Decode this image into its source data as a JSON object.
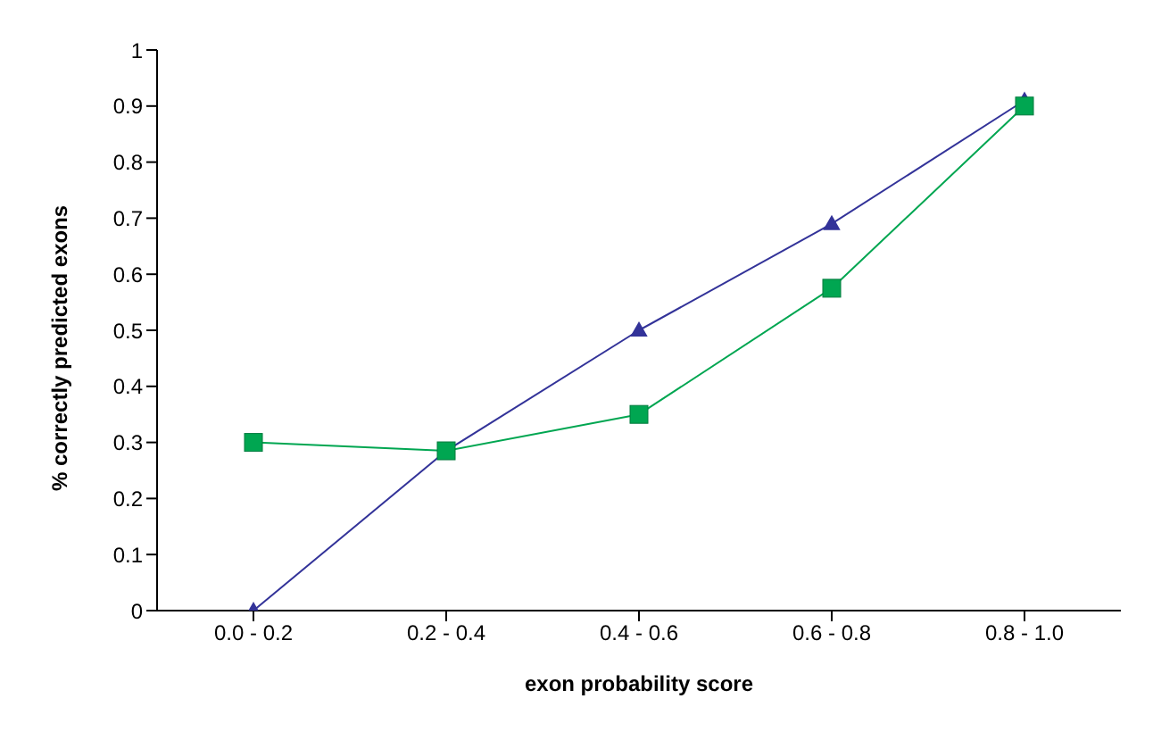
{
  "chart_data": {
    "type": "line",
    "xlabel": "exon probability score",
    "ylabel": "% correctly predicted exons",
    "categories": [
      "0.0 - 0.2",
      "0.2 - 0.4",
      "0.4 - 0.6",
      "0.6 - 0.8",
      "0.8 - 1.0"
    ],
    "series": [
      {
        "color": "#333399",
        "marker": "triangle",
        "values": [
          0,
          0.285,
          0.5,
          0.69,
          0.91
        ]
      },
      {
        "color": "#00a651",
        "marker": "square",
        "values": [
          0.3,
          0.285,
          0.35,
          0.575,
          0.9
        ]
      }
    ],
    "ylim": [
      0,
      1
    ],
    "yticks": [
      0,
      0.1,
      0.2,
      0.3,
      0.4,
      0.5,
      0.6,
      0.7,
      0.8,
      0.9,
      1
    ],
    "grid": false
  }
}
